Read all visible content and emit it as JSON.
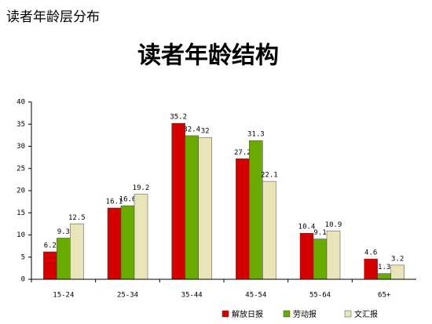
{
  "chart_data": {
    "type": "bar",
    "subtitle": "读者年龄层分布",
    "title": "读者年龄结构",
    "categories": [
      "15-24",
      "25-34",
      "35-44",
      "45-54",
      "55-64",
      "65+"
    ],
    "series": [
      {
        "name": "解放日报",
        "color": "#d40000",
        "values": [
          6.2,
          16.1,
          35.2,
          27.2,
          10.4,
          4.6
        ]
      },
      {
        "name": "劳动报",
        "color": "#6aab00",
        "values": [
          9.3,
          16.6,
          32.4,
          31.3,
          9.1,
          1.3
        ]
      },
      {
        "name": "文汇报",
        "color": "#e9e5b9",
        "values": [
          12.5,
          19.2,
          32,
          22.1,
          10.9,
          3.2
        ]
      }
    ],
    "ylim": [
      0,
      40
    ],
    "yticks": [
      0,
      5,
      10,
      15,
      20,
      25,
      30,
      35,
      40
    ],
    "grid": false,
    "legend": "bottom"
  }
}
